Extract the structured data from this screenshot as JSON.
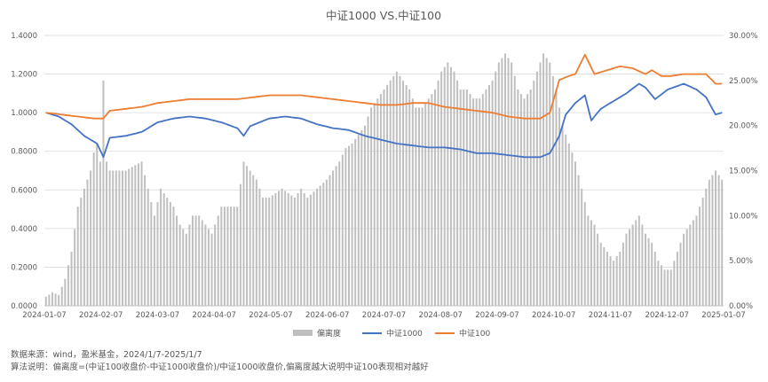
{
  "chart_data": {
    "type": "bar+line",
    "title": "中证1000 VS.中证100",
    "x_ticks": [
      "2024-01-07",
      "2024-02-07",
      "2024-03-07",
      "2024-04-07",
      "2024-05-07",
      "2024-06-07",
      "2024-07-07",
      "2024-08-07",
      "2024-09-07",
      "2024-10-07",
      "2024-11-07",
      "2024-12-07",
      "2025-01-07"
    ],
    "y_left": {
      "ticks": [
        "0.0000",
        "0.2000",
        "0.4000",
        "0.6000",
        "0.8000",
        "1.0000",
        "1.2000",
        "1.4000"
      ],
      "lim": [
        0,
        1.4
      ]
    },
    "y_right": {
      "ticks": [
        "0.00%",
        "5.00%",
        "10.00%",
        "15.00%",
        "20.00%",
        "25.00%",
        "30.00%"
      ],
      "lim": [
        0,
        30
      ]
    },
    "legend": [
      "偏离度",
      "中证1000",
      "中证100"
    ],
    "legend_position": "bottom",
    "colors": {
      "bar": "#bfbfbf",
      "csi1000": "#4472c4",
      "csi100": "#ed7d31"
    },
    "series": [
      {
        "name": "偏离度",
        "axis": "right",
        "kind": "bar",
        "points": [
          [
            0,
            1.0
          ],
          [
            2,
            1.5
          ],
          [
            4,
            1.2
          ],
          [
            6,
            3.0
          ],
          [
            8,
            6.0
          ],
          [
            10,
            11.0
          ],
          [
            12,
            13.0
          ],
          [
            14,
            15.0
          ],
          [
            15,
            17.0
          ],
          [
            16,
            18.0
          ],
          [
            17,
            16.0
          ],
          [
            18,
            25.0
          ],
          [
            19,
            16.0
          ],
          [
            20,
            15.0
          ],
          [
            25,
            15.0
          ],
          [
            30,
            16.0
          ],
          [
            32,
            13.0
          ],
          [
            34,
            10.0
          ],
          [
            36,
            13.0
          ],
          [
            38,
            12.0
          ],
          [
            40,
            11.0
          ],
          [
            42,
            9.0
          ],
          [
            44,
            8.0
          ],
          [
            46,
            10.0
          ],
          [
            48,
            10.0
          ],
          [
            50,
            9.0
          ],
          [
            52,
            8.0
          ],
          [
            55,
            11.0
          ],
          [
            60,
            11.0
          ],
          [
            62,
            16.0
          ],
          [
            64,
            15.0
          ],
          [
            66,
            14.0
          ],
          [
            68,
            12.0
          ],
          [
            70,
            12.0
          ],
          [
            72,
            12.5
          ],
          [
            74,
            13.0
          ],
          [
            76,
            12.5
          ],
          [
            78,
            12.0
          ],
          [
            80,
            13.0
          ],
          [
            82,
            12.0
          ],
          [
            85,
            13.0
          ],
          [
            88,
            14.0
          ],
          [
            90,
            15.0
          ],
          [
            92,
            16.0
          ],
          [
            94,
            17.5
          ],
          [
            96,
            18.0
          ],
          [
            98,
            19.0
          ],
          [
            100,
            20.0
          ],
          [
            102,
            22.0
          ],
          [
            104,
            23.0
          ],
          [
            106,
            24.0
          ],
          [
            108,
            25.0
          ],
          [
            110,
            26.0
          ],
          [
            112,
            25.0
          ],
          [
            114,
            24.0
          ],
          [
            116,
            22.0
          ],
          [
            118,
            22.0
          ],
          [
            120,
            23.0
          ],
          [
            122,
            24.0
          ],
          [
            124,
            26.0
          ],
          [
            126,
            27.0
          ],
          [
            128,
            26.0
          ],
          [
            130,
            24.0
          ],
          [
            132,
            24.0
          ],
          [
            134,
            23.0
          ],
          [
            136,
            23.0
          ],
          [
            138,
            24.0
          ],
          [
            140,
            25.0
          ],
          [
            142,
            27.0
          ],
          [
            144,
            28.0
          ],
          [
            146,
            27.0
          ],
          [
            148,
            24.0
          ],
          [
            150,
            23.0
          ],
          [
            152,
            24.0
          ],
          [
            154,
            26.0
          ],
          [
            156,
            28.0
          ],
          [
            158,
            27.0
          ],
          [
            160,
            24.0
          ],
          [
            162,
            20.0
          ],
          [
            164,
            18.0
          ],
          [
            166,
            16.0
          ],
          [
            168,
            13.0
          ],
          [
            170,
            10.0
          ],
          [
            172,
            9.0
          ],
          [
            174,
            7.0
          ],
          [
            176,
            6.0
          ],
          [
            178,
            5.0
          ],
          [
            180,
            6.0
          ],
          [
            182,
            8.0
          ],
          [
            184,
            9.0
          ],
          [
            186,
            10.0
          ],
          [
            188,
            8.0
          ],
          [
            190,
            7.0
          ],
          [
            192,
            5.0
          ],
          [
            194,
            4.0
          ],
          [
            196,
            4.0
          ],
          [
            198,
            6.0
          ],
          [
            200,
            8.0
          ],
          [
            202,
            9.0
          ],
          [
            204,
            10.0
          ],
          [
            206,
            12.0
          ],
          [
            208,
            14.0
          ],
          [
            210,
            15.0
          ],
          [
            212,
            14.0
          ]
        ]
      },
      {
        "name": "中证1000",
        "axis": "left",
        "kind": "line",
        "points": [
          [
            0,
            1.0
          ],
          [
            4,
            0.98
          ],
          [
            8,
            0.94
          ],
          [
            12,
            0.88
          ],
          [
            16,
            0.84
          ],
          [
            18,
            0.77
          ],
          [
            20,
            0.87
          ],
          [
            25,
            0.88
          ],
          [
            30,
            0.9
          ],
          [
            35,
            0.95
          ],
          [
            40,
            0.97
          ],
          [
            45,
            0.98
          ],
          [
            50,
            0.97
          ],
          [
            55,
            0.95
          ],
          [
            60,
            0.92
          ],
          [
            62,
            0.88
          ],
          [
            64,
            0.93
          ],
          [
            70,
            0.97
          ],
          [
            75,
            0.98
          ],
          [
            80,
            0.97
          ],
          [
            85,
            0.94
          ],
          [
            90,
            0.92
          ],
          [
            95,
            0.91
          ],
          [
            100,
            0.88
          ],
          [
            105,
            0.86
          ],
          [
            110,
            0.84
          ],
          [
            115,
            0.83
          ],
          [
            120,
            0.82
          ],
          [
            125,
            0.82
          ],
          [
            130,
            0.81
          ],
          [
            135,
            0.79
          ],
          [
            140,
            0.79
          ],
          [
            145,
            0.78
          ],
          [
            150,
            0.77
          ],
          [
            155,
            0.77
          ],
          [
            158,
            0.79
          ],
          [
            161,
            0.88
          ],
          [
            163,
            0.99
          ],
          [
            166,
            1.05
          ],
          [
            169,
            1.09
          ],
          [
            171,
            0.96
          ],
          [
            174,
            1.02
          ],
          [
            178,
            1.06
          ],
          [
            182,
            1.1
          ],
          [
            186,
            1.15
          ],
          [
            188,
            1.13
          ],
          [
            191,
            1.07
          ],
          [
            195,
            1.12
          ],
          [
            200,
            1.15
          ],
          [
            204,
            1.12
          ],
          [
            207,
            1.08
          ],
          [
            210,
            0.99
          ],
          [
            212,
            1.0
          ]
        ]
      },
      {
        "name": "中证100",
        "axis": "left",
        "kind": "line",
        "points": [
          [
            0,
            1.0
          ],
          [
            5,
            0.99
          ],
          [
            10,
            0.98
          ],
          [
            15,
            0.97
          ],
          [
            18,
            0.97
          ],
          [
            20,
            1.01
          ],
          [
            25,
            1.02
          ],
          [
            30,
            1.03
          ],
          [
            35,
            1.05
          ],
          [
            40,
            1.06
          ],
          [
            45,
            1.07
          ],
          [
            50,
            1.07
          ],
          [
            55,
            1.07
          ],
          [
            60,
            1.07
          ],
          [
            65,
            1.08
          ],
          [
            70,
            1.09
          ],
          [
            75,
            1.09
          ],
          [
            80,
            1.09
          ],
          [
            85,
            1.08
          ],
          [
            90,
            1.07
          ],
          [
            95,
            1.06
          ],
          [
            100,
            1.05
          ],
          [
            105,
            1.04
          ],
          [
            110,
            1.04
          ],
          [
            115,
            1.05
          ],
          [
            120,
            1.05
          ],
          [
            125,
            1.03
          ],
          [
            130,
            1.02
          ],
          [
            135,
            1.01
          ],
          [
            140,
            1.0
          ],
          [
            145,
            0.98
          ],
          [
            150,
            0.97
          ],
          [
            155,
            0.97
          ],
          [
            158,
            1.0
          ],
          [
            161,
            1.17
          ],
          [
            164,
            1.19
          ],
          [
            166,
            1.2
          ],
          [
            169,
            1.3
          ],
          [
            172,
            1.2
          ],
          [
            176,
            1.22
          ],
          [
            180,
            1.24
          ],
          [
            184,
            1.23
          ],
          [
            188,
            1.2
          ],
          [
            190,
            1.22
          ],
          [
            193,
            1.19
          ],
          [
            196,
            1.19
          ],
          [
            200,
            1.2
          ],
          [
            204,
            1.2
          ],
          [
            207,
            1.2
          ],
          [
            210,
            1.15
          ],
          [
            212,
            1.15
          ]
        ]
      }
    ]
  },
  "notes": {
    "line1": "数据来源：wind，盈米基金，2024/1/7-2025/1/7",
    "line2": "算法说明：偏离度=(中证100收盘价-中证1000收盘价)/中证1000收盘价,偏离度越大说明中证100表现相对越好"
  }
}
